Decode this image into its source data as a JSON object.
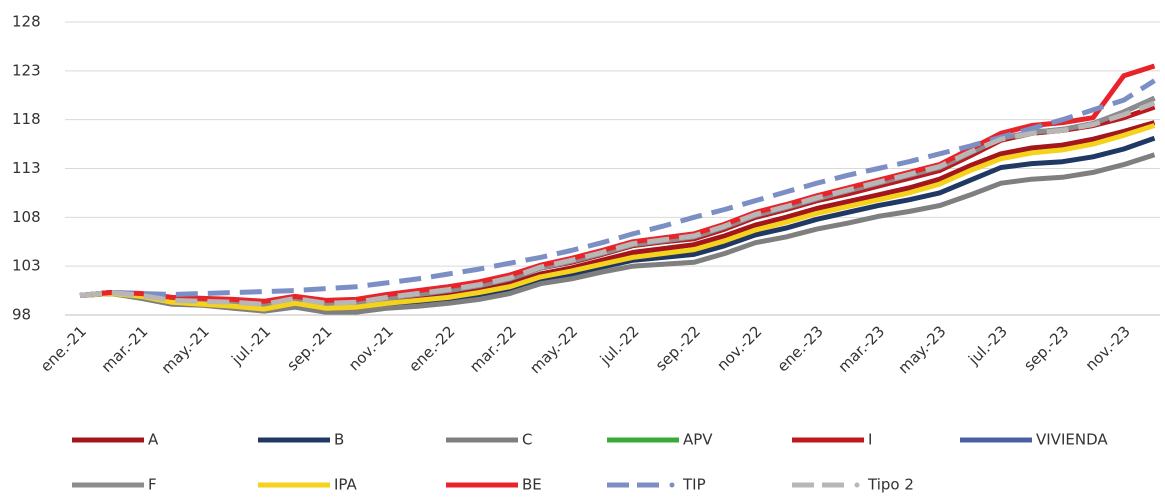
{
  "chart_data": {
    "type": "line",
    "categories": [
      "ene.-21",
      null,
      "mar.-21",
      null,
      "may.-21",
      null,
      "jul.-21",
      null,
      "sep.-21",
      null,
      "nov.-21",
      null,
      "ene.-22",
      null,
      "mar.-22",
      null,
      "may.-22",
      null,
      "jul.-22",
      null,
      "sep.-22",
      null,
      "nov.-22",
      null,
      "ene.-23",
      null,
      "mar.-23",
      null,
      "may.-23",
      null,
      "jul.-23",
      null,
      "sep.-23",
      null,
      "nov.-23",
      null
    ],
    "ylim": [
      98,
      128
    ],
    "yticks": [
      98,
      103,
      108,
      113,
      118,
      123,
      128
    ],
    "grid": true,
    "series": [
      {
        "name": "A",
        "color": "#a3161c",
        "dash": "solid",
        "values": [
          100,
          100.2,
          99.9,
          99.4,
          99.2,
          99.0,
          98.8,
          99.4,
          98.9,
          99.0,
          99.4,
          99.8,
          100.1,
          100.6,
          101.2,
          102.2,
          102.8,
          103.6,
          104.4,
          104.8,
          105.2,
          106.1,
          107.2,
          108.0,
          108.9,
          109.6,
          110.3,
          111.0,
          111.9,
          113.3,
          114.5,
          115.1,
          115.4,
          116.0,
          116.8,
          117.7
        ]
      },
      {
        "name": "B",
        "color": "#1f3864",
        "dash": "solid",
        "values": [
          100,
          100.2,
          99.8,
          99.2,
          99.1,
          98.8,
          98.5,
          99.0,
          98.5,
          98.5,
          98.9,
          99.2,
          99.5,
          100.0,
          100.6,
          101.7,
          102.2,
          102.9,
          103.6,
          103.9,
          104.2,
          105.1,
          106.2,
          106.9,
          107.8,
          108.5,
          109.2,
          109.8,
          110.5,
          111.8,
          113.1,
          113.5,
          113.7,
          114.2,
          115.0,
          116.1
        ]
      },
      {
        "name": "C",
        "color": "#7f7f7f",
        "dash": "solid",
        "values": [
          100,
          100.2,
          99.7,
          99.1,
          99.0,
          98.7,
          98.4,
          98.8,
          98.3,
          98.3,
          98.7,
          98.9,
          99.2,
          99.6,
          100.2,
          101.2,
          101.7,
          102.4,
          103.0,
          103.2,
          103.4,
          104.3,
          105.4,
          106.0,
          106.8,
          107.4,
          108.1,
          108.6,
          109.2,
          110.3,
          111.5,
          111.9,
          112.1,
          112.6,
          113.4,
          114.4
        ]
      },
      {
        "name": "APV",
        "color": "#3aab3a",
        "dash": "solid",
        "values": [
          100,
          100.3,
          100.1,
          99.6,
          99.5,
          99.4,
          99.2,
          99.7,
          99.3,
          99.4,
          99.9,
          100.3,
          100.6,
          101.1,
          101.8,
          102.8,
          103.4,
          104.2,
          105.1,
          105.5,
          105.8,
          106.8,
          108.0,
          108.8,
          109.7,
          110.4,
          111.2,
          112.0,
          112.8,
          114.3,
          115.9,
          116.6,
          116.9,
          117.4,
          118.2,
          119.3
        ]
      },
      {
        "name": "I",
        "color": "#c0161f",
        "dash": "solid",
        "values": [
          100,
          100.3,
          100.1,
          99.6,
          99.5,
          99.4,
          99.2,
          99.7,
          99.3,
          99.4,
          99.9,
          100.3,
          100.6,
          101.1,
          101.8,
          102.8,
          103.4,
          104.2,
          105.1,
          105.5,
          105.8,
          106.8,
          108.0,
          108.8,
          109.7,
          110.4,
          111.2,
          112.0,
          112.8,
          114.3,
          115.9,
          116.6,
          116.9,
          117.4,
          118.2,
          119.3
        ]
      },
      {
        "name": "VIVIENDA",
        "color": "#4c5fa3",
        "dash": "solid",
        "values": [
          100,
          100.3,
          100.0,
          99.4,
          99.3,
          99.2,
          99.0,
          99.6,
          99.1,
          99.2,
          99.7,
          100.1,
          100.5,
          101.0,
          101.7,
          102.8,
          103.5,
          104.3,
          105.2,
          105.6,
          106.0,
          107.0,
          108.2,
          109.0,
          109.9,
          110.7,
          111.5,
          112.3,
          113.1,
          114.6,
          116.1,
          116.7,
          117.0,
          117.6,
          118.8,
          120.2
        ]
      },
      {
        "name": "F",
        "color": "#8c8c8c",
        "dash": "solid",
        "values": [
          100,
          100.3,
          100.0,
          99.4,
          99.3,
          99.2,
          99.0,
          99.6,
          99.1,
          99.2,
          99.7,
          100.1,
          100.5,
          101.0,
          101.7,
          102.8,
          103.5,
          104.3,
          105.2,
          105.6,
          106.0,
          107.0,
          108.2,
          109.0,
          109.9,
          110.7,
          111.5,
          112.3,
          113.1,
          114.6,
          116.1,
          116.7,
          117.0,
          117.6,
          118.8,
          120.2
        ]
      },
      {
        "name": "IPA",
        "color": "#f5d21c",
        "dash": "solid",
        "values": [
          100,
          100.2,
          99.9,
          99.3,
          99.1,
          98.9,
          98.6,
          99.2,
          98.7,
          98.8,
          99.2,
          99.5,
          99.8,
          100.3,
          100.9,
          101.9,
          102.5,
          103.2,
          103.9,
          104.3,
          104.7,
          105.6,
          106.7,
          107.5,
          108.4,
          109.1,
          109.8,
          110.5,
          111.4,
          112.8,
          114.0,
          114.6,
          114.9,
          115.5,
          116.4,
          117.4
        ]
      },
      {
        "name": "BE",
        "color": "#e8232a",
        "dash": "solid",
        "values": [
          100,
          100.3,
          100.2,
          99.8,
          99.7,
          99.6,
          99.4,
          99.9,
          99.5,
          99.6,
          100.1,
          100.5,
          100.9,
          101.4,
          102.1,
          103.1,
          103.8,
          104.6,
          105.5,
          105.9,
          106.3,
          107.3,
          108.5,
          109.3,
          110.2,
          111.0,
          111.8,
          112.6,
          113.4,
          115.0,
          116.6,
          117.4,
          117.7,
          118.2,
          122.5,
          123.5
        ]
      },
      {
        "name": "TIP",
        "color": "#7b8fc4",
        "dash": "dashed",
        "values": [
          100,
          100.3,
          100.2,
          100.1,
          100.2,
          100.3,
          100.4,
          100.5,
          100.7,
          100.9,
          101.3,
          101.7,
          102.2,
          102.7,
          103.3,
          103.9,
          104.6,
          105.4,
          106.3,
          107.1,
          108.0,
          108.8,
          109.7,
          110.6,
          111.5,
          112.3,
          113.0,
          113.7,
          114.5,
          115.3,
          116.2,
          117.1,
          118.0,
          119.0,
          120.0,
          122.0
        ]
      },
      {
        "name": "Tipo 2",
        "color": "#b7b7b7",
        "dash": "dashed",
        "values": [
          100,
          100.3,
          100.0,
          99.5,
          99.4,
          99.3,
          99.1,
          99.7,
          99.2,
          99.3,
          99.8,
          100.2,
          100.6,
          101.1,
          101.8,
          102.9,
          103.6,
          104.4,
          105.3,
          105.7,
          106.1,
          107.1,
          108.3,
          109.1,
          110.0,
          110.8,
          111.6,
          112.4,
          113.2,
          114.7,
          116.0,
          116.6,
          116.9,
          117.5,
          118.5,
          119.7
        ]
      }
    ]
  }
}
